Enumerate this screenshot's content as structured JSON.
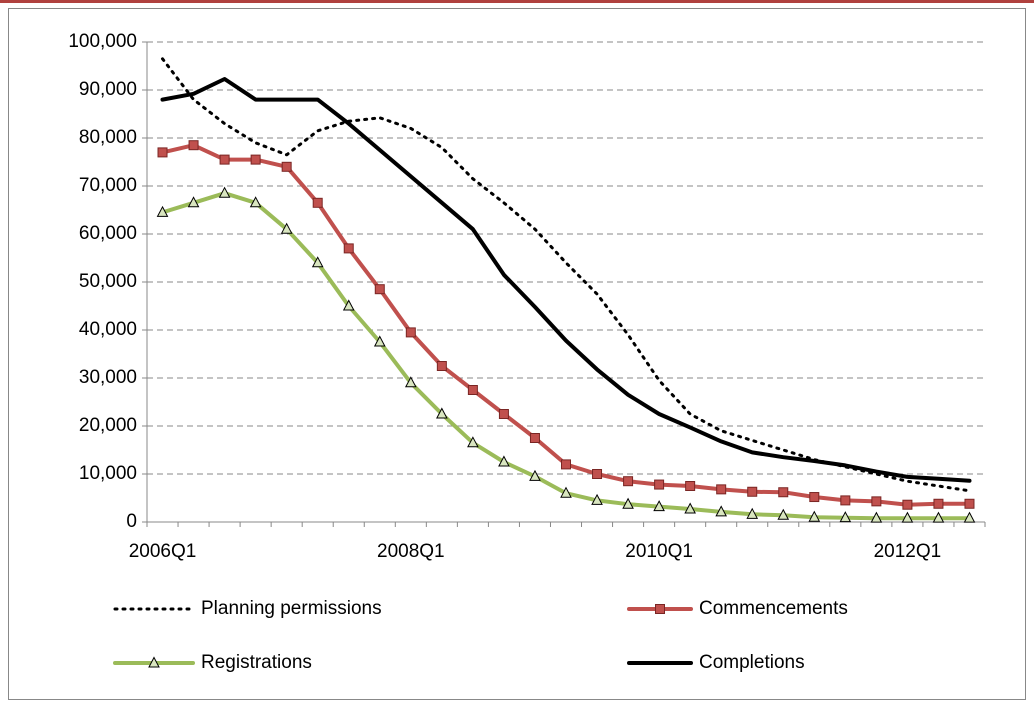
{
  "chart_data": {
    "type": "line",
    "categories": [
      "2006Q1",
      null,
      null,
      null,
      null,
      null,
      null,
      null,
      "2008Q1",
      null,
      null,
      null,
      null,
      null,
      null,
      null,
      "2010Q1",
      null,
      null,
      null,
      null,
      null,
      null,
      null,
      "2012Q1",
      null,
      null
    ],
    "series": [
      {
        "name": "Planning permissions",
        "color": "#000000",
        "style": "dotted",
        "values": [
          96500,
          88000,
          83000,
          79000,
          76500,
          81500,
          83500,
          84200,
          82000,
          78000,
          71500,
          66500,
          61000,
          54000,
          47500,
          39000,
          29500,
          22500,
          19000,
          17000,
          15000,
          13000,
          11500,
          10000,
          8500,
          7500,
          6500
        ]
      },
      {
        "name": "Commencements",
        "color": "#c0504d",
        "marker": "square",
        "values": [
          77000,
          78500,
          75500,
          75500,
          74000,
          66500,
          57000,
          48500,
          39500,
          32500,
          27500,
          22500,
          17500,
          12000,
          10000,
          8500,
          7800,
          7500,
          6800,
          6300,
          6200,
          5200,
          4500,
          4300,
          3600,
          3800,
          3800
        ]
      },
      {
        "name": "Registrations",
        "color": "#9bbb59",
        "marker": "triangle",
        "values": [
          64500,
          66500,
          68500,
          66500,
          61000,
          54000,
          45000,
          37500,
          29000,
          22500,
          16500,
          12500,
          9500,
          6000,
          4500,
          3700,
          3200,
          2700,
          2100,
          1600,
          1400,
          1000,
          900,
          800,
          800,
          800,
          800
        ]
      },
      {
        "name": "Completions",
        "color": "#000000",
        "style": "solid",
        "values": [
          88000,
          89200,
          92300,
          88000,
          88000,
          88000,
          83000,
          77500,
          72000,
          66500,
          61000,
          51500,
          44800,
          37800,
          31800,
          26500,
          22500,
          19700,
          16800,
          14500,
          13500,
          12700,
          11800,
          10500,
          9400,
          9000,
          8600
        ]
      }
    ],
    "ylim": [
      0,
      100000
    ],
    "yticks": [
      {
        "value": 0,
        "label": "0"
      },
      {
        "value": 10000,
        "label": "10,000"
      },
      {
        "value": 20000,
        "label": "20,000"
      },
      {
        "value": 30000,
        "label": "30,000"
      },
      {
        "value": 40000,
        "label": "40,000"
      },
      {
        "value": 50000,
        "label": "50,000"
      },
      {
        "value": 60000,
        "label": "60,000"
      },
      {
        "value": 70000,
        "label": "70,000"
      },
      {
        "value": 80000,
        "label": "80,000"
      },
      {
        "value": 90000,
        "label": "90,000"
      },
      {
        "value": 100000,
        "label": "100,000"
      }
    ],
    "grid": true,
    "legend": "bottom"
  }
}
